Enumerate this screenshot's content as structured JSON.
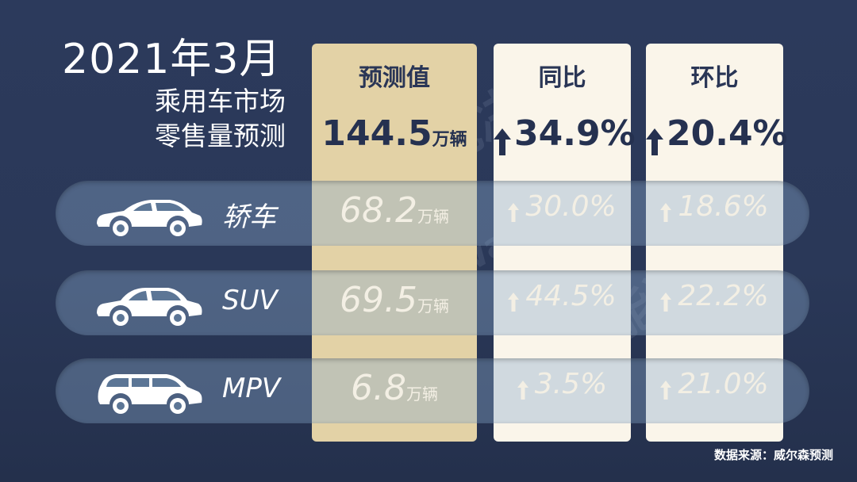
{
  "title": {
    "line1": "2021年3月",
    "line2": "乘用车市场",
    "line3": "零售量预测"
  },
  "columns": {
    "pred": {
      "header": "预测值",
      "total": "144.5",
      "unit": "万辆"
    },
    "yoy": {
      "header": "同比",
      "total": "34.9%"
    },
    "mom": {
      "header": "环比",
      "total": "20.4%"
    }
  },
  "rows": [
    {
      "name": "轿车",
      "pred": "68.2",
      "unit": "万辆",
      "yoy": "30.0%",
      "mom": "18.6%"
    },
    {
      "name": "SUV",
      "pred": "69.5",
      "unit": "万辆",
      "yoy": "44.5%",
      "mom": "22.2%"
    },
    {
      "name": "MPV",
      "pred": "6.8",
      "unit": "万辆",
      "yoy": "3.5%",
      "mom": "21.0%"
    }
  ],
  "watermark": {
    "text1": "智能决策",
    "text2": "wavs.com"
  },
  "source": "数据来源：威尔森预测",
  "colors": {
    "background": "#2c3a5c",
    "gold": "#e3d2a6",
    "cream": "#faf5ea",
    "dark_text": "#253150"
  }
}
